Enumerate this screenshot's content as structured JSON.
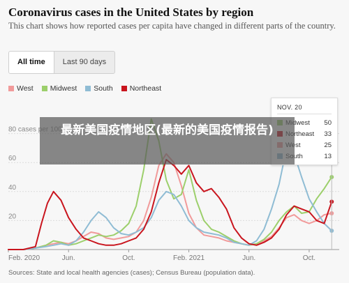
{
  "header": {
    "title": "Coronavirus cases in the United States by region",
    "subtitle": "This chart shows how reported cases per capita have changed in different parts of the country."
  },
  "tabs": [
    {
      "label": "All time",
      "active": true
    },
    {
      "label": "Last 90 days",
      "active": false
    }
  ],
  "legend": [
    {
      "name": "West",
      "color": "#f19a9a"
    },
    {
      "name": "Midwest",
      "color": "#9ccf6b"
    },
    {
      "name": "South",
      "color": "#8fbcd4"
    },
    {
      "name": "Northeast",
      "color": "#c9151e"
    }
  ],
  "tooltip": {
    "date": "NOV. 20",
    "rows": [
      {
        "name": "Midwest",
        "value": "50",
        "color": "#9ccf6b"
      },
      {
        "name": "Northeast",
        "value": "33",
        "color": "#c9151e"
      },
      {
        "name": "West",
        "value": "25",
        "color": "#f19a9a"
      },
      {
        "name": "South",
        "value": "13",
        "color": "#8fbcd4"
      }
    ]
  },
  "overlay": {
    "text": "最新美国疫情地区(最新的美国疫情报告)"
  },
  "source": "Sources: State and local health agencies (cases); Census Bureau (population data).",
  "chart_data": {
    "type": "line",
    "y_tick_labels": [
      "80 cases per 100k",
      "60",
      "40",
      "20"
    ],
    "y_ticks": [
      80,
      60,
      40,
      20
    ],
    "ylim": [
      0,
      100
    ],
    "x_tick_labels": [
      "Feb. 2020",
      "Jun.",
      "Oct.",
      "Feb. 2021",
      "Jun.",
      "Oct."
    ],
    "x_ticks": [
      0,
      4,
      8,
      12,
      16,
      20
    ],
    "xlim": [
      0,
      22
    ],
    "grid": true,
    "legend_position": "top-left",
    "series": [
      {
        "name": "West",
        "color": "#f19a9a",
        "x": [
          0,
          1,
          1.8,
          2.5,
          3,
          3.5,
          4,
          4.5,
          5,
          5.5,
          6,
          6.5,
          7,
          7.5,
          8,
          8.5,
          9,
          9.5,
          10,
          10.5,
          11,
          11.5,
          12,
          12.5,
          13,
          13.5,
          14,
          14.5,
          15,
          15.5,
          16,
          16.5,
          17,
          17.5,
          18,
          18.5,
          19,
          19.5,
          20,
          20.5,
          21,
          21.5
        ],
        "y": [
          0,
          0,
          1,
          3,
          4,
          5,
          4,
          6,
          9,
          12,
          11,
          8,
          7,
          8,
          9,
          12,
          20,
          36,
          58,
          66,
          60,
          44,
          25,
          15,
          10,
          9,
          8,
          6,
          5,
          4,
          3,
          4,
          6,
          9,
          15,
          22,
          24,
          20,
          18,
          20,
          24,
          25
        ]
      },
      {
        "name": "Midwest",
        "color": "#9ccf6b",
        "x": [
          0,
          1,
          1.8,
          2.5,
          3,
          3.5,
          4,
          4.5,
          5,
          5.5,
          6,
          6.5,
          7,
          7.5,
          8,
          8.5,
          9,
          9.5,
          10,
          10.5,
          11,
          11.5,
          12,
          12.5,
          13,
          13.5,
          14,
          14.5,
          15,
          15.5,
          16,
          16.5,
          17,
          17.5,
          18,
          18.5,
          19,
          19.5,
          20,
          20.5,
          21,
          21.5
        ],
        "y": [
          0,
          0,
          1,
          3,
          6,
          5,
          3,
          4,
          6,
          8,
          10,
          9,
          10,
          13,
          18,
          30,
          55,
          90,
          75,
          48,
          35,
          38,
          55,
          34,
          20,
          14,
          12,
          9,
          6,
          4,
          3,
          4,
          7,
          12,
          20,
          26,
          30,
          25,
          26,
          35,
          42,
          50
        ]
      },
      {
        "name": "South",
        "color": "#8fbcd4",
        "x": [
          0,
          1,
          1.8,
          2.5,
          3,
          3.5,
          4,
          4.5,
          5,
          5.5,
          6,
          6.5,
          7,
          7.5,
          8,
          8.5,
          9,
          9.5,
          10,
          10.5,
          11,
          11.5,
          12,
          12.5,
          13,
          13.5,
          14,
          14.5,
          15,
          15.5,
          16,
          16.5,
          17,
          17.5,
          18,
          18.5,
          19,
          19.5,
          20,
          20.5,
          21,
          21.5
        ],
        "y": [
          0,
          0,
          1,
          2,
          3,
          4,
          3,
          6,
          12,
          20,
          26,
          22,
          15,
          11,
          10,
          12,
          15,
          22,
          34,
          40,
          38,
          30,
          20,
          15,
          12,
          11,
          10,
          8,
          5,
          4,
          3,
          6,
          14,
          28,
          45,
          70,
          66,
          50,
          35,
          26,
          18,
          13
        ]
      },
      {
        "name": "Northeast",
        "color": "#c9151e",
        "x": [
          0,
          1,
          1.8,
          2.2,
          2.6,
          3,
          3.5,
          4,
          4.5,
          5,
          5.5,
          6,
          6.5,
          7,
          7.5,
          8,
          8.5,
          9,
          9.5,
          10,
          10.5,
          11,
          11.5,
          12,
          12.5,
          13,
          13.5,
          14,
          14.5,
          15,
          15.5,
          16,
          16.5,
          17,
          17.5,
          18,
          18.5,
          19,
          19.5,
          20,
          20.5,
          21,
          21.5
        ],
        "y": [
          0,
          0,
          2,
          18,
          32,
          40,
          34,
          22,
          14,
          8,
          6,
          4,
          3,
          3,
          4,
          6,
          8,
          14,
          26,
          46,
          62,
          58,
          52,
          58,
          46,
          40,
          42,
          36,
          28,
          15,
          8,
          4,
          3,
          5,
          8,
          14,
          24,
          30,
          28,
          26,
          20,
          18,
          33
        ]
      }
    ]
  }
}
